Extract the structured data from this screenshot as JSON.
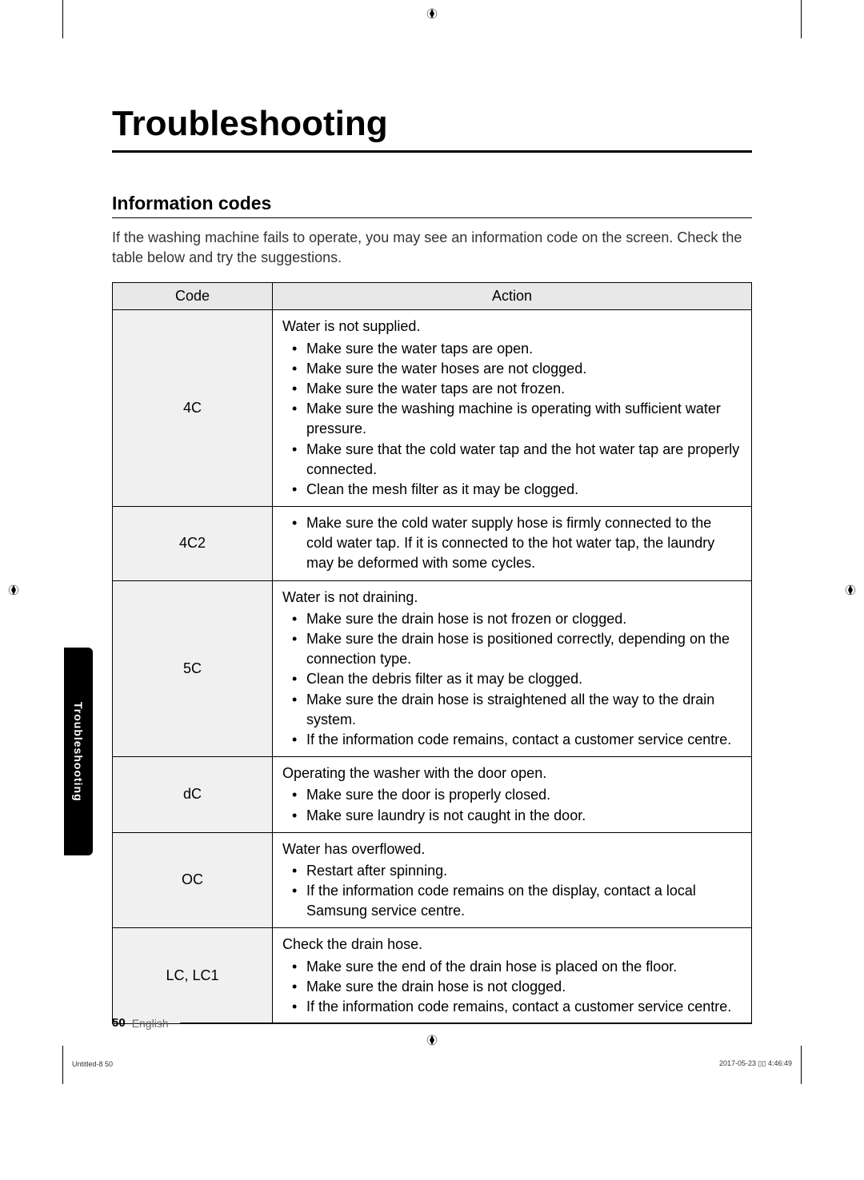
{
  "page": {
    "title": "Troubleshooting",
    "section_title": "Information codes",
    "intro": "If the washing machine fails to operate, you may see an information code on the screen. Check the table below and try the suggestions.",
    "side_tab": "Troubleshooting",
    "page_number": "50",
    "footer_lang": "English",
    "print_footer_left": "Untitled-8   50",
    "print_footer_right": "2017-05-23   ▯▯ 4:46:49"
  },
  "table": {
    "header_code": "Code",
    "header_action": "Action",
    "rows": [
      {
        "code": "4C",
        "intro": "Water is not supplied.",
        "items": [
          "Make sure the water taps are open.",
          "Make sure the water hoses are not clogged.",
          "Make sure the water taps are not frozen.",
          "Make sure the washing machine is operating with sufficient water pressure.",
          "Make sure that the cold water tap and the hot water tap are properly connected.",
          "Clean the mesh filter as it may be clogged."
        ]
      },
      {
        "code": "4C2",
        "intro": "",
        "items": [
          "Make sure the cold water supply hose is firmly connected to the cold water tap. If it is connected to the hot water tap, the laundry may be deformed with some cycles."
        ]
      },
      {
        "code": "5C",
        "intro": "Water is not draining.",
        "items": [
          "Make sure the drain hose is not frozen or clogged.",
          "Make sure the drain hose is positioned correctly, depending on the connection type.",
          "Clean the debris filter as it may be clogged.",
          "Make sure the drain hose is straightened all the way to the drain system.",
          "If the information code remains, contact a customer service centre."
        ]
      },
      {
        "code": "dC",
        "intro": "Operating the washer with the door open.",
        "items": [
          "Make sure the door is properly closed.",
          "Make sure laundry is not caught in the door."
        ]
      },
      {
        "code": "OC",
        "intro": "Water has overflowed.",
        "items": [
          "Restart after spinning.",
          "If the information code remains on the display, contact a local Samsung service centre."
        ]
      },
      {
        "code": "LC, LC1",
        "intro": "Check the drain hose.",
        "items": [
          "Make sure the end of the drain hose is placed on the floor.",
          "Make sure the drain hose is not clogged.",
          "If the information code remains, contact a customer service centre."
        ]
      }
    ]
  },
  "colors": {
    "text": "#000000",
    "bg": "#ffffff",
    "header_bg": "#e8e8e8",
    "code_bg": "#f0f0f0",
    "border": "#000000",
    "tab_bg": "#000000",
    "tab_text": "#ffffff"
  }
}
